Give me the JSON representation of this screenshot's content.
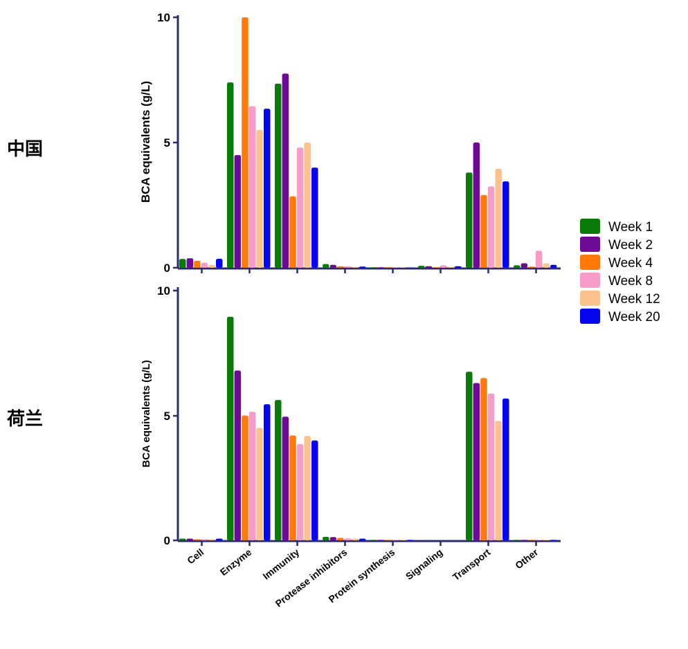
{
  "chart_data": [
    {
      "type": "bar",
      "panel_label": "中国",
      "ylabel": "BCA equivalents (g/L)",
      "ylim": [
        0,
        10
      ],
      "yticks": [
        "0",
        "5",
        "10"
      ],
      "categories": [
        "Cell",
        "Enzyme",
        "Immunity",
        "Protease inhibitors",
        "Protein synthesis",
        "Signaling",
        "Transport",
        "Other"
      ],
      "series": [
        {
          "name": "Week 1",
          "values": [
            0.35,
            7.4,
            7.35,
            0.15,
            0.02,
            0.08,
            3.8,
            0.1
          ]
        },
        {
          "name": "Week 2",
          "values": [
            0.38,
            4.5,
            7.75,
            0.12,
            0.02,
            0.06,
            5.0,
            0.18
          ]
        },
        {
          "name": "Week 4",
          "values": [
            0.28,
            10.0,
            2.85,
            0.06,
            0.02,
            0.02,
            2.9,
            0.05
          ]
        },
        {
          "name": "Week 8",
          "values": [
            0.2,
            6.45,
            4.8,
            0.06,
            0.01,
            0.1,
            3.25,
            0.68
          ]
        },
        {
          "name": "Week 12",
          "values": [
            0.12,
            5.5,
            5.0,
            0.04,
            0.01,
            0.04,
            3.95,
            0.18
          ]
        },
        {
          "name": "Week 20",
          "values": [
            0.36,
            6.35,
            4.0,
            0.05,
            0.01,
            0.06,
            3.45,
            0.12
          ]
        }
      ]
    },
    {
      "type": "bar",
      "panel_label": "荷兰",
      "ylabel": "BCA equivalents (g/L)",
      "ylim": [
        0,
        10
      ],
      "yticks": [
        "0",
        "5",
        "10"
      ],
      "categories": [
        "Cell",
        "Enzyme",
        "Immunity",
        "Protease inhibitors",
        "Protein synthesis",
        "Signaling",
        "Transport",
        "Other"
      ],
      "series": [
        {
          "name": "Week 1",
          "values": [
            0.07,
            8.95,
            5.62,
            0.14,
            0.02,
            0.0,
            6.75,
            0.02
          ]
        },
        {
          "name": "Week 2",
          "values": [
            0.07,
            6.8,
            4.95,
            0.13,
            0.02,
            0.0,
            6.3,
            0.02
          ]
        },
        {
          "name": "Week 4",
          "values": [
            0.05,
            5.0,
            4.2,
            0.1,
            0.02,
            0.0,
            6.5,
            0.02
          ]
        },
        {
          "name": "Week 8",
          "values": [
            0.05,
            5.15,
            3.85,
            0.08,
            0.02,
            0.0,
            5.88,
            0.02
          ]
        },
        {
          "name": "Week 12",
          "values": [
            0.05,
            4.5,
            4.18,
            0.07,
            0.02,
            0.0,
            4.78,
            0.02
          ]
        },
        {
          "name": "Week 20",
          "values": [
            0.07,
            5.45,
            4.0,
            0.07,
            0.02,
            0.0,
            5.68,
            0.02
          ]
        }
      ]
    }
  ],
  "legend": [
    {
      "label": "Week 1",
      "color": "#0a7a0a"
    },
    {
      "label": "Week 2",
      "color": "#6e0b96"
    },
    {
      "label": "Week 4",
      "color": "#ff7a0a"
    },
    {
      "label": "Week 8",
      "color": "#f99bc8"
    },
    {
      "label": "Week 12",
      "color": "#fcc28e"
    },
    {
      "label": "Week 20",
      "color": "#0505f0"
    }
  ]
}
